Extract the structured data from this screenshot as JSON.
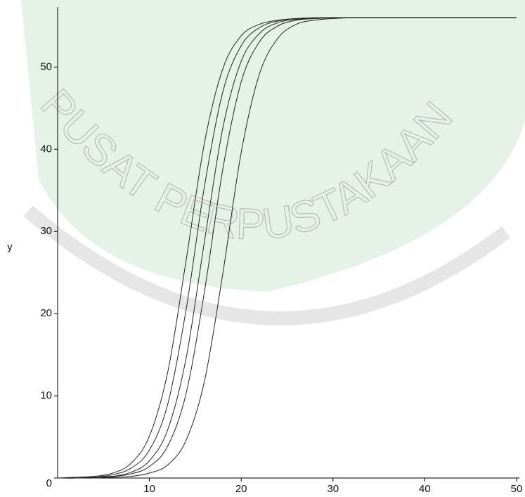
{
  "chart_data": {
    "type": "line",
    "watermark": "PUSAT PERPUSTAKAAN",
    "y_label": "y",
    "x": [
      0,
      2,
      4,
      6,
      8,
      10,
      12,
      14,
      16,
      18,
      20,
      22,
      24,
      26,
      28,
      30,
      32,
      34,
      36,
      38,
      40,
      42,
      44,
      46,
      48,
      50
    ],
    "series": [
      {
        "color": "#222222",
        "values": [
          0.0,
          0.1,
          0.2,
          0.6,
          1.8,
          5.1,
          12.9,
          26.5,
          40.8,
          49.8,
          53.8,
          55.2,
          55.7,
          55.9,
          56.0,
          56.0,
          56.0,
          56.0,
          56.0,
          56.0,
          56.0,
          56.0,
          56.0,
          56.0,
          56.0,
          56.0
        ]
      },
      {
        "color": "#222222",
        "values": [
          0.0,
          0.0,
          0.1,
          0.4,
          1.2,
          3.4,
          9.0,
          20.5,
          35.5,
          47.0,
          52.6,
          54.8,
          55.6,
          55.9,
          56.0,
          56.0,
          56.0,
          56.0,
          56.0,
          56.0,
          56.0,
          56.0,
          56.0,
          56.0,
          56.0,
          56.0
        ]
      },
      {
        "color": "#222222",
        "values": [
          0.0,
          0.0,
          0.1,
          0.2,
          0.7,
          2.1,
          5.9,
          14.6,
          28.8,
          42.6,
          50.7,
          54.1,
          55.4,
          55.8,
          55.9,
          56.0,
          56.0,
          56.0,
          56.0,
          56.0,
          56.0,
          56.0,
          56.0,
          56.0,
          56.0,
          56.0
        ]
      },
      {
        "color": "#222222",
        "values": [
          0.0,
          0.0,
          0.1,
          0.2,
          0.5,
          1.4,
          3.9,
          10.3,
          22.7,
          37.6,
          48.2,
          53.1,
          55.0,
          55.7,
          55.9,
          56.0,
          56.0,
          56.0,
          56.0,
          56.0,
          56.0,
          56.0,
          56.0,
          56.0,
          56.0,
          56.0
        ]
      },
      {
        "color": "#222222",
        "values": [
          0.0,
          0.0,
          0.0,
          0.1,
          0.2,
          0.6,
          1.6,
          4.6,
          11.8,
          24.9,
          39.6,
          49.2,
          53.5,
          55.2,
          55.7,
          55.9,
          56.0,
          56.0,
          56.0,
          56.0,
          56.0,
          56.0,
          56.0,
          56.0,
          56.0,
          56.0
        ]
      }
    ],
    "xlim": [
      0,
      50
    ],
    "ylim": [
      0,
      57.3
    ],
    "xticks": [
      10,
      20,
      30,
      40,
      50
    ],
    "yticks": [
      0,
      10,
      20,
      30,
      40,
      50
    ],
    "grid": false
  }
}
